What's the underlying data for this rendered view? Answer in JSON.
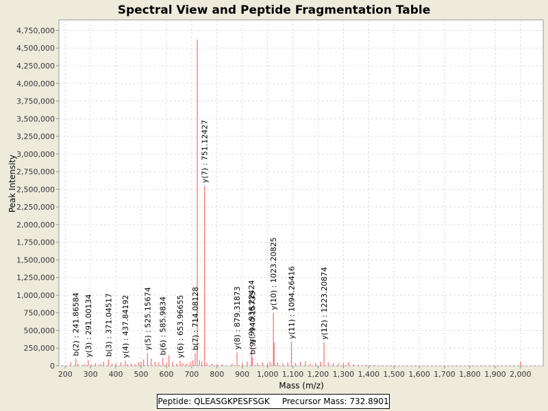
{
  "chart_data": {
    "type": "bar",
    "title": "Spectral View and Peptide Fragmentation Table",
    "xlabel": "Mass (m/z)",
    "ylabel": "Peak Intensity",
    "xlim": [
      175,
      2090
    ],
    "ylim": [
      0,
      4900000
    ],
    "x_ticks": [
      200,
      300,
      400,
      500,
      600,
      700,
      800,
      900,
      1000,
      1100,
      1200,
      1300,
      1400,
      1500,
      1600,
      1700,
      1800,
      1900,
      2000
    ],
    "x_tick_labels": [
      "200",
      "300",
      "400",
      "500",
      "600",
      "700",
      "800",
      "900",
      "1,000",
      "1,100",
      "1,200",
      "1,300",
      "1,400",
      "1,500",
      "1,600",
      "1,700",
      "1,800",
      "1,900",
      "2,000"
    ],
    "y_ticks": [
      0,
      250000,
      500000,
      750000,
      1000000,
      1250000,
      1500000,
      1750000,
      2000000,
      2250000,
      2500000,
      2750000,
      3000000,
      3250000,
      3500000,
      3750000,
      4000000,
      4250000,
      4500000,
      4750000
    ],
    "y_tick_labels": [
      "0",
      "250,000",
      "500,000",
      "750,000",
      "1,000,000",
      "1,250,000",
      "1,500,000",
      "1,750,000",
      "2,000,000",
      "2,250,000",
      "2,500,000",
      "2,750,000",
      "3,000,000",
      "3,250,000",
      "3,500,000",
      "3,750,000",
      "4,000,000",
      "4,250,000",
      "4,500,000",
      "4,750,000"
    ],
    "grid": true,
    "legend": "none",
    "series_color": "#ff6666",
    "peaks": [
      {
        "x": 222,
        "y": 50000
      },
      {
        "x": 241.9,
        "y": 100000
      },
      {
        "x": 250,
        "y": 30000
      },
      {
        "x": 275,
        "y": 25000
      },
      {
        "x": 291,
        "y": 80000
      },
      {
        "x": 305,
        "y": 20000
      },
      {
        "x": 320,
        "y": 40000
      },
      {
        "x": 340,
        "y": 30000
      },
      {
        "x": 352,
        "y": 60000
      },
      {
        "x": 371,
        "y": 90000
      },
      {
        "x": 385,
        "y": 30000
      },
      {
        "x": 400,
        "y": 40000
      },
      {
        "x": 420,
        "y": 50000
      },
      {
        "x": 437.8,
        "y": 70000
      },
      {
        "x": 445,
        "y": 25000
      },
      {
        "x": 460,
        "y": 30000
      },
      {
        "x": 475,
        "y": 25000
      },
      {
        "x": 490,
        "y": 50000
      },
      {
        "x": 500,
        "y": 60000
      },
      {
        "x": 510,
        "y": 90000
      },
      {
        "x": 525.2,
        "y": 180000
      },
      {
        "x": 540,
        "y": 100000
      },
      {
        "x": 555,
        "y": 60000
      },
      {
        "x": 570,
        "y": 50000
      },
      {
        "x": 585.9,
        "y": 110000
      },
      {
        "x": 600,
        "y": 40000
      },
      {
        "x": 610,
        "y": 150000
      },
      {
        "x": 625,
        "y": 60000
      },
      {
        "x": 640,
        "y": 30000
      },
      {
        "x": 654,
        "y": 70000
      },
      {
        "x": 665,
        "y": 40000
      },
      {
        "x": 680,
        "y": 30000
      },
      {
        "x": 695,
        "y": 50000
      },
      {
        "x": 705,
        "y": 80000
      },
      {
        "x": 714.1,
        "y": 180000
      },
      {
        "x": 722,
        "y": 4620000
      },
      {
        "x": 731,
        "y": 80000
      },
      {
        "x": 740,
        "y": 60000
      },
      {
        "x": 751.1,
        "y": 2550000
      },
      {
        "x": 760,
        "y": 40000
      },
      {
        "x": 780,
        "y": 30000
      },
      {
        "x": 800,
        "y": 25000
      },
      {
        "x": 820,
        "y": 20000
      },
      {
        "x": 860,
        "y": 30000
      },
      {
        "x": 879.3,
        "y": 190000
      },
      {
        "x": 900,
        "y": 40000
      },
      {
        "x": 920,
        "y": 60000
      },
      {
        "x": 936.2,
        "y": 280000
      },
      {
        "x": 940.2,
        "y": 120000
      },
      {
        "x": 960,
        "y": 40000
      },
      {
        "x": 980,
        "y": 50000
      },
      {
        "x": 1000,
        "y": 40000
      },
      {
        "x": 1010,
        "y": 60000
      },
      {
        "x": 1023.2,
        "y": 750000
      },
      {
        "x": 1026,
        "y": 330000
      },
      {
        "x": 1040,
        "y": 50000
      },
      {
        "x": 1060,
        "y": 30000
      },
      {
        "x": 1080,
        "y": 50000
      },
      {
        "x": 1094.3,
        "y": 340000
      },
      {
        "x": 1110,
        "y": 40000
      },
      {
        "x": 1130,
        "y": 60000
      },
      {
        "x": 1150,
        "y": 70000
      },
      {
        "x": 1170,
        "y": 30000
      },
      {
        "x": 1190,
        "y": 40000
      },
      {
        "x": 1210,
        "y": 60000
      },
      {
        "x": 1223.2,
        "y": 330000
      },
      {
        "x": 1240,
        "y": 50000
      },
      {
        "x": 1260,
        "y": 40000
      },
      {
        "x": 1280,
        "y": 30000
      },
      {
        "x": 1300,
        "y": 40000
      },
      {
        "x": 1320,
        "y": 50000
      },
      {
        "x": 1340,
        "y": 20000
      },
      {
        "x": 1360,
        "y": 15000
      },
      {
        "x": 1390,
        "y": 15000
      },
      {
        "x": 1420,
        "y": 10000
      },
      {
        "x": 2000,
        "y": 60000
      }
    ],
    "annotations": [
      {
        "label": "b(2) : 241.86584",
        "x": 241.9,
        "y": 100000
      },
      {
        "label": "y(3) : 291.00134",
        "x": 291,
        "y": 80000
      },
      {
        "label": "b(3) : 371.04517",
        "x": 371,
        "y": 90000
      },
      {
        "label": "y(4) : 437.84192",
        "x": 437.8,
        "y": 70000
      },
      {
        "label": "y(5) : 525.15674",
        "x": 525.2,
        "y": 180000
      },
      {
        "label": "b(6) : 585.9834",
        "x": 585.9,
        "y": 110000
      },
      {
        "label": "y(6) : 653.96655",
        "x": 654,
        "y": 70000
      },
      {
        "label": "b(7) : 714.08128",
        "x": 714.1,
        "y": 180000
      },
      {
        "label": "y(7) : 751.12427",
        "x": 751.1,
        "y": 2550000
      },
      {
        "label": "y(8) : 879.31873",
        "x": 879.3,
        "y": 190000
      },
      {
        "label": "b(9) : 940.15735",
        "x": 940.2,
        "y": 120000
      },
      {
        "label": "y(9) : 936.22424",
        "x": 936.2,
        "y": 280000
      },
      {
        "label": "y(10) : 1023.20825",
        "x": 1023.2,
        "y": 750000
      },
      {
        "label": "y(11) : 1094.26416",
        "x": 1094.3,
        "y": 340000
      },
      {
        "label": "y(12) : 1223.20874",
        "x": 1223.2,
        "y": 330000
      }
    ]
  },
  "info_box": {
    "peptide": "Peptide: QLEASGKPESFSGK",
    "precursor": "Precursor Mass: 732.8901"
  }
}
